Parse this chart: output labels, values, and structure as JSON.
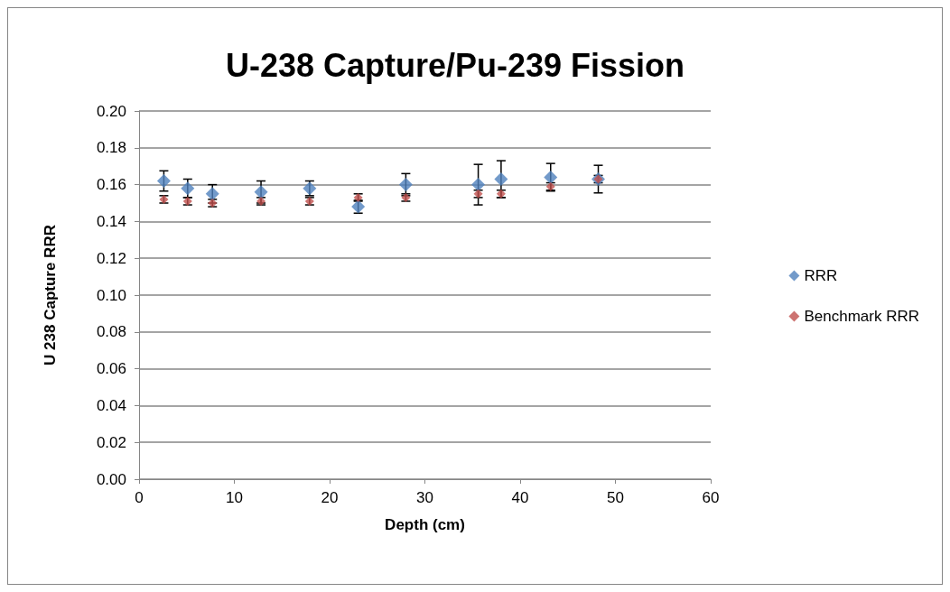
{
  "chart_data": {
    "type": "scatter",
    "title": "U-238 Capture/Pu-239 Fission",
    "xlabel": "Depth (cm)",
    "ylabel": "U 238 Capture RRR",
    "x": [
      2.6,
      5.1,
      7.7,
      12.8,
      17.9,
      23.0,
      28.0,
      35.6,
      38.0,
      43.2,
      48.2
    ],
    "series": [
      {
        "name": "RRR",
        "color": "#4f81bd",
        "values": [
          0.162,
          0.158,
          0.155,
          0.156,
          0.158,
          0.148,
          0.16,
          0.16,
          0.163,
          0.164,
          0.163
        ],
        "errors": [
          0.0055,
          0.005,
          0.005,
          0.006,
          0.004,
          0.0035,
          0.006,
          0.011,
          0.01,
          0.0075,
          0.0075
        ]
      },
      {
        "name": "Benchmark RRR",
        "color": "#c0504d",
        "values": [
          0.152,
          0.151,
          0.15,
          0.151,
          0.151,
          0.153,
          0.153,
          0.155,
          0.155,
          0.159,
          0.163
        ],
        "errors": [
          0.002,
          0.002,
          0.002,
          0.002,
          0.002,
          0.002,
          0.002,
          0.002,
          0.002,
          0.002,
          0.002
        ]
      }
    ],
    "xlim": [
      0,
      60
    ],
    "xticks": [
      0,
      10,
      20,
      30,
      40,
      50,
      60
    ],
    "ylim": [
      0,
      0.2
    ],
    "yticks": [
      {
        "value": 0,
        "label": "0.00"
      },
      {
        "value": 0.02,
        "label": "0.02"
      },
      {
        "value": 0.04,
        "label": "0.04"
      },
      {
        "value": 0.06,
        "label": "0.06"
      },
      {
        "value": 0.08,
        "label": "0.08"
      },
      {
        "value": 0.1,
        "label": "0.10"
      },
      {
        "value": 0.12,
        "label": "0.12"
      },
      {
        "value": 0.14,
        "label": "0.14"
      },
      {
        "value": 0.16,
        "label": "0.16"
      },
      {
        "value": 0.18,
        "label": "0.18"
      },
      {
        "value": 0.2,
        "label": "0.20"
      }
    ],
    "grid": "y",
    "legend": "right",
    "marker": "diamond"
  }
}
